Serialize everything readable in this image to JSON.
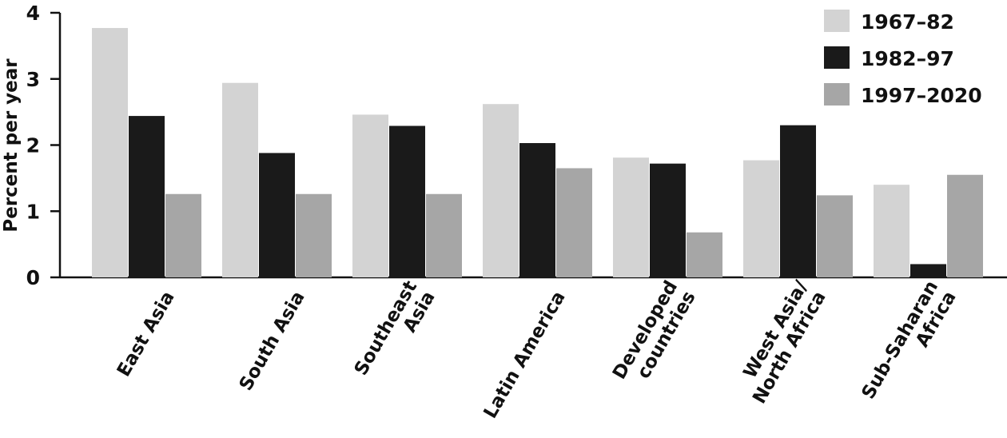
{
  "chart_data": {
    "type": "bar",
    "title": "",
    "xlabel": "",
    "ylabel": "Percent per year",
    "ylim": [
      0,
      4
    ],
    "yticks": [
      0,
      1,
      2,
      3,
      4
    ],
    "grid": false,
    "legend_position": "top-right",
    "categories": [
      [
        "East Asia"
      ],
      [
        "South Asia"
      ],
      [
        "Southeast",
        "Asia"
      ],
      [
        "Latin America"
      ],
      [
        "Developed",
        "countries"
      ],
      [
        "West Asia/",
        "North Africa"
      ],
      [
        "Sub-Saharan",
        "Africa"
      ]
    ],
    "series": [
      {
        "name": "1967–82",
        "color": "#d3d3d3",
        "values": [
          3.77,
          2.94,
          2.46,
          2.62,
          1.81,
          1.77,
          1.4
        ]
      },
      {
        "name": "1982–97",
        "color": "#1a1a1a",
        "values": [
          2.44,
          1.88,
          2.29,
          2.03,
          1.72,
          2.3,
          0.2
        ]
      },
      {
        "name": "1997–2020",
        "color": "#a6a6a6",
        "values": [
          1.26,
          1.26,
          1.26,
          1.65,
          0.68,
          1.24,
          1.55
        ]
      }
    ]
  }
}
